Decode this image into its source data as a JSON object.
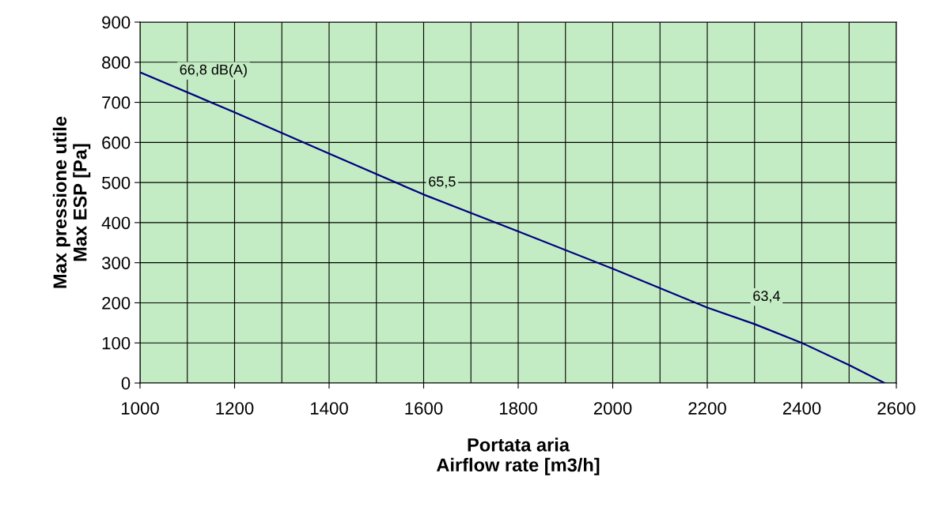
{
  "chart_data": {
    "type": "line",
    "xlabel": "Portata aria\nAirflow rate [m3/h]",
    "ylabel": "Max pressione utile\nMax ESP [Pa]",
    "x": [
      1000,
      1200,
      1400,
      1600,
      1800,
      2000,
      2200,
      2300,
      2400,
      2500,
      2575
    ],
    "series": [
      {
        "color": "#000080",
        "values": [
          775,
          675,
          572,
          470,
          378,
          285,
          188,
          147,
          100,
          45,
          0
        ]
      }
    ],
    "xlim": [
      1000,
      2600
    ],
    "xticks": [
      1000,
      1200,
      1400,
      1600,
      1800,
      2000,
      2200,
      2400,
      2600
    ],
    "ylim": [
      0,
      900
    ],
    "yticks": [
      0,
      100,
      200,
      300,
      400,
      500,
      600,
      700,
      800,
      900
    ],
    "grid": true,
    "marker": "none",
    "line_style": "solid",
    "annotations": [
      "66,8 dB(A)",
      "65,5",
      "63,4"
    ]
  }
}
